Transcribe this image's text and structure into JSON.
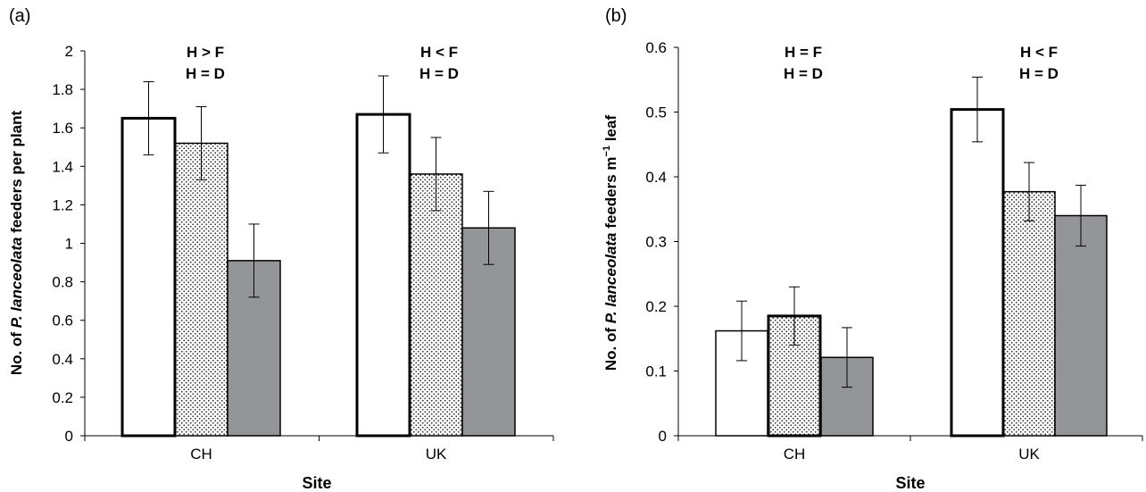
{
  "chart_data": [
    {
      "type": "bar",
      "panel_label": "(a)",
      "categories": [
        "CH",
        "UK"
      ],
      "series": [
        {
          "values": [
            1.65,
            1.67
          ],
          "errors": [
            0.19,
            0.2
          ],
          "fill": "#ffffff"
        },
        {
          "values": [
            1.52,
            1.36
          ],
          "errors": [
            0.19,
            0.19
          ],
          "fill": "dotted"
        },
        {
          "values": [
            0.91,
            1.08
          ],
          "errors": [
            0.19,
            0.19
          ],
          "fill": "#939598"
        }
      ],
      "xlabel": "Site",
      "ylabel_parts": [
        "No. of ",
        "P. lanceolata",
        " feeders per plant"
      ],
      "ylim": [
        0,
        2
      ],
      "yticks": [
        "0",
        "0.2",
        "0.4",
        "0.6",
        "0.8",
        "1",
        "1.2",
        "1.4",
        "1.6",
        "1.8",
        "2"
      ],
      "annotations": [
        [
          "H > F",
          "H = D"
        ],
        [
          "H < F",
          "H = D"
        ]
      ],
      "grid": false
    },
    {
      "type": "bar",
      "panel_label": "(b)",
      "categories": [
        "CH",
        "UK"
      ],
      "series": [
        {
          "values": [
            0.162,
            0.504
          ],
          "errors": [
            0.046,
            0.05
          ],
          "fill": "#ffffff"
        },
        {
          "values": [
            0.185,
            0.377
          ],
          "errors": [
            0.045,
            0.045
          ],
          "fill": "dotted"
        },
        {
          "values": [
            0.121,
            0.34
          ],
          "errors": [
            0.046,
            0.047
          ],
          "fill": "#939598"
        }
      ],
      "xlabel": "Site",
      "ylabel_parts": [
        "No. of ",
        "P. lanceolata",
        " feeders m",
        "−1",
        " leaf"
      ],
      "ylim": [
        0,
        0.6
      ],
      "yticks": [
        "0",
        "0.1",
        "0.2",
        "0.3",
        "0.4",
        "0.5",
        "0.6"
      ],
      "annotations": [
        [
          "H = F",
          "H = D"
        ],
        [
          "H < F",
          "H = D"
        ]
      ],
      "grid": false
    }
  ]
}
